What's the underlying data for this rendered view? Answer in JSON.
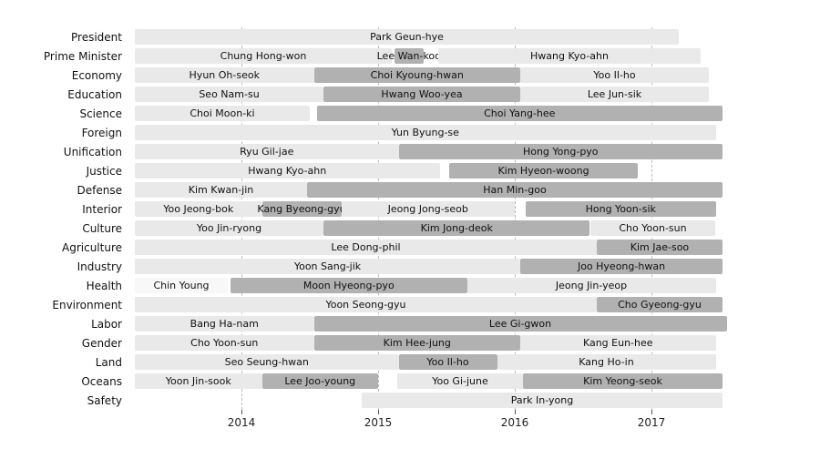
{
  "chart_data": {
    "type": "gantt",
    "title": "",
    "xlabel": "",
    "ylabel": "",
    "grid": true,
    "x_range": [
      2013.22,
      2017.98
    ],
    "x_ticks": [
      {
        "value": 2014,
        "label": "2014"
      },
      {
        "value": 2015,
        "label": "2015"
      },
      {
        "value": 2016,
        "label": "2016"
      },
      {
        "value": 2017,
        "label": "2017"
      }
    ],
    "colors": {
      "light": "#e9e9e9",
      "dark": "#b1b1b1",
      "white": "#f8f8f8"
    },
    "rows": [
      {
        "label": "President",
        "bars": [
          {
            "name": "Park Geun-hye",
            "start": 2013.22,
            "end": 2017.2,
            "shade": "light"
          }
        ]
      },
      {
        "label": "Prime Minister",
        "bars": [
          {
            "name": "Chung Hong-won",
            "start": 2013.22,
            "end": 2015.1,
            "shade": "light"
          },
          {
            "name": "Lee Wan-koo",
            "start": 2015.12,
            "end": 2015.33,
            "shade": "dark"
          },
          {
            "name": "Hwang Kyo-ahn",
            "start": 2015.44,
            "end": 2017.36,
            "shade": "light"
          }
        ]
      },
      {
        "label": "Economy",
        "bars": [
          {
            "name": "Hyun Oh-seok",
            "start": 2013.22,
            "end": 2014.53,
            "shade": "light"
          },
          {
            "name": "Choi Kyoung-hwan",
            "start": 2014.53,
            "end": 2016.04,
            "shade": "dark"
          },
          {
            "name": "Yoo Il-ho",
            "start": 2016.04,
            "end": 2017.42,
            "shade": "light"
          }
        ]
      },
      {
        "label": "Education",
        "bars": [
          {
            "name": "Seo Nam-su",
            "start": 2013.22,
            "end": 2014.6,
            "shade": "light"
          },
          {
            "name": "Hwang Woo-yea",
            "start": 2014.6,
            "end": 2016.04,
            "shade": "dark"
          },
          {
            "name": "Lee Jun-sik",
            "start": 2016.04,
            "end": 2017.42,
            "shade": "light"
          }
        ]
      },
      {
        "label": "Science",
        "bars": [
          {
            "name": "Choi Moon-ki",
            "start": 2013.22,
            "end": 2014.5,
            "shade": "light"
          },
          {
            "name": "Choi Yang-hee",
            "start": 2014.55,
            "end": 2017.52,
            "shade": "dark"
          }
        ]
      },
      {
        "label": "Foreign",
        "bars": [
          {
            "name": "Yun Byung-se",
            "start": 2013.22,
            "end": 2017.47,
            "shade": "light"
          }
        ]
      },
      {
        "label": "Unification",
        "bars": [
          {
            "name": "Ryu Gil-jae",
            "start": 2013.22,
            "end": 2015.15,
            "shade": "light"
          },
          {
            "name": "Hong Yong-pyo",
            "start": 2015.15,
            "end": 2017.52,
            "shade": "dark"
          }
        ]
      },
      {
        "label": "Justice",
        "bars": [
          {
            "name": "Hwang Kyo-ahn",
            "start": 2013.22,
            "end": 2015.45,
            "shade": "light"
          },
          {
            "name": "Kim Hyeon-woong",
            "start": 2015.52,
            "end": 2016.9,
            "shade": "dark"
          }
        ]
      },
      {
        "label": "Defense",
        "bars": [
          {
            "name": "Kim Kwan-jin",
            "start": 2013.22,
            "end": 2014.48,
            "shade": "light"
          },
          {
            "name": "Han Min-goo",
            "start": 2014.48,
            "end": 2017.52,
            "shade": "dark"
          }
        ]
      },
      {
        "label": "Interior",
        "bars": [
          {
            "name": "Yoo Jeong-bok",
            "start": 2013.22,
            "end": 2014.15,
            "shade": "light"
          },
          {
            "name": "Kang Byeong-gyu",
            "start": 2014.15,
            "end": 2014.73,
            "shade": "dark"
          },
          {
            "name": "Jeong Jong-seob",
            "start": 2014.73,
            "end": 2016.0,
            "shade": "light"
          },
          {
            "name": "Hong Yoon-sik",
            "start": 2016.08,
            "end": 2017.47,
            "shade": "dark"
          }
        ]
      },
      {
        "label": "Culture",
        "bars": [
          {
            "name": "Yoo Jin-ryong",
            "start": 2013.22,
            "end": 2014.6,
            "shade": "light"
          },
          {
            "name": "Kim Jong-deok",
            "start": 2014.6,
            "end": 2016.55,
            "shade": "dark"
          },
          {
            "name": "Cho Yoon-sun",
            "start": 2016.55,
            "end": 2017.47,
            "shade": "light"
          }
        ]
      },
      {
        "label": "Agriculture",
        "bars": [
          {
            "name": "Lee Dong-phil",
            "start": 2013.22,
            "end": 2016.6,
            "shade": "light"
          },
          {
            "name": "Kim Jae-soo",
            "start": 2016.6,
            "end": 2017.52,
            "shade": "dark"
          }
        ]
      },
      {
        "label": "Industry",
        "bars": [
          {
            "name": "Yoon Sang-jik",
            "start": 2013.22,
            "end": 2016.04,
            "shade": "light"
          },
          {
            "name": "Joo Hyeong-hwan",
            "start": 2016.04,
            "end": 2017.52,
            "shade": "dark"
          }
        ]
      },
      {
        "label": "Health",
        "bars": [
          {
            "name": "Chin Young",
            "start": 2013.22,
            "end": 2013.9,
            "shade": "white"
          },
          {
            "name": "Moon Hyeong-pyo",
            "start": 2013.92,
            "end": 2015.65,
            "shade": "dark"
          },
          {
            "name": "Jeong Jin-yeop",
            "start": 2015.65,
            "end": 2017.47,
            "shade": "light"
          }
        ]
      },
      {
        "label": "Environment",
        "bars": [
          {
            "name": "Yoon Seong-gyu",
            "start": 2013.22,
            "end": 2016.6,
            "shade": "light"
          },
          {
            "name": "Cho Gyeong-gyu",
            "start": 2016.6,
            "end": 2017.52,
            "shade": "dark"
          }
        ]
      },
      {
        "label": "Labor",
        "bars": [
          {
            "name": "Bang Ha-nam",
            "start": 2013.22,
            "end": 2014.53,
            "shade": "light"
          },
          {
            "name": "Lee Gi-gwon",
            "start": 2014.53,
            "end": 2017.55,
            "shade": "dark"
          }
        ]
      },
      {
        "label": "Gender",
        "bars": [
          {
            "name": "Cho Yoon-sun",
            "start": 2013.22,
            "end": 2014.53,
            "shade": "light"
          },
          {
            "name": "Kim Hee-jung",
            "start": 2014.53,
            "end": 2016.04,
            "shade": "dark"
          },
          {
            "name": "Kang Eun-hee",
            "start": 2016.04,
            "end": 2017.47,
            "shade": "light"
          }
        ]
      },
      {
        "label": "Land",
        "bars": [
          {
            "name": "Seo Seung-hwan",
            "start": 2013.22,
            "end": 2015.15,
            "shade": "light"
          },
          {
            "name": "Yoo Il-ho",
            "start": 2015.15,
            "end": 2015.87,
            "shade": "dark"
          },
          {
            "name": "Kang Ho-in",
            "start": 2015.87,
            "end": 2017.47,
            "shade": "light"
          }
        ]
      },
      {
        "label": "Oceans",
        "bars": [
          {
            "name": "Yoon Jin-sook",
            "start": 2013.22,
            "end": 2014.15,
            "shade": "light"
          },
          {
            "name": "Lee Joo-young",
            "start": 2014.15,
            "end": 2015.0,
            "shade": "dark"
          },
          {
            "name": "Yoo Gi-june",
            "start": 2015.14,
            "end": 2016.06,
            "shade": "light"
          },
          {
            "name": "Kim Yeong-seok",
            "start": 2016.06,
            "end": 2017.52,
            "shade": "dark"
          }
        ]
      },
      {
        "label": "Safety",
        "bars": [
          {
            "name": "Park In-yong",
            "start": 2014.88,
            "end": 2017.52,
            "shade": "light"
          }
        ]
      }
    ]
  }
}
